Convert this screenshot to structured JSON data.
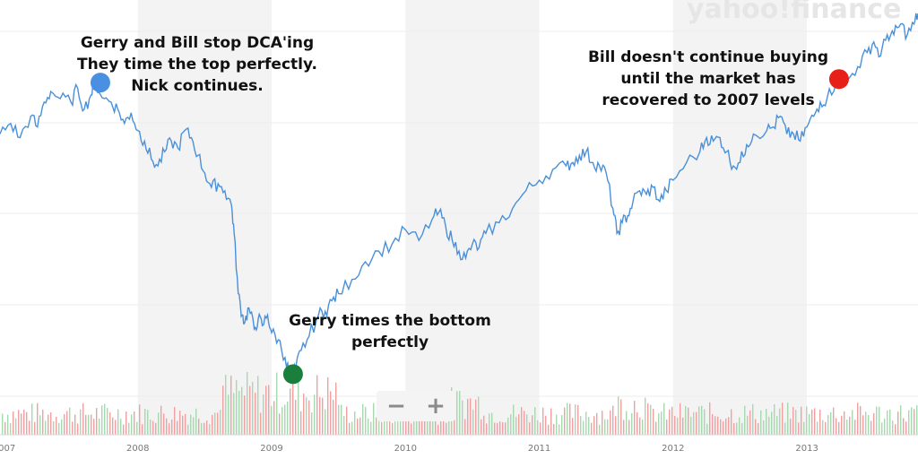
{
  "chart_data": {
    "type": "line",
    "title": "",
    "xlabel": "",
    "ylabel": "",
    "xlim": [
      2006.97,
      2013.83
    ],
    "ylim": [
      600,
      1750
    ],
    "x_ticks": [
      "2007",
      "2008",
      "2009",
      "2010",
      "2011",
      "2012",
      "2013"
    ],
    "x_tick_values": [
      2007,
      2008,
      2009,
      2010,
      2011,
      2012,
      2013
    ],
    "grid": "alternating vertical year bands",
    "series": [
      {
        "color": "#4a90d9",
        "x": [
          2006.97,
          2007.05,
          2007.12,
          2007.2,
          2007.25,
          2007.3,
          2007.35,
          2007.42,
          2007.5,
          2007.55,
          2007.6,
          2007.65,
          2007.68,
          2007.75,
          2007.8,
          2007.85,
          2007.9,
          2007.95,
          2008.0,
          2008.05,
          2008.1,
          2008.15,
          2008.2,
          2008.25,
          2008.3,
          2008.35,
          2008.4,
          2008.45,
          2008.5,
          2008.55,
          2008.6,
          2008.65,
          2008.7,
          2008.72,
          2008.75,
          2008.78,
          2008.8,
          2008.83,
          2008.87,
          2008.9,
          2008.93,
          2008.97,
          2009.0,
          2009.05,
          2009.1,
          2009.14,
          2009.18,
          2009.22,
          2009.28,
          2009.35,
          2009.4,
          2009.45,
          2009.5,
          2009.6,
          2009.7,
          2009.8,
          2009.9,
          2010.0,
          2010.1,
          2010.2,
          2010.25,
          2010.3,
          2010.35,
          2010.4,
          2010.45,
          2010.5,
          2010.55,
          2010.6,
          2010.7,
          2010.8,
          2010.9,
          2011.0,
          2011.1,
          2011.2,
          2011.25,
          2011.3,
          2011.35,
          2011.4,
          2011.45,
          2011.5,
          2011.55,
          2011.58,
          2011.62,
          2011.66,
          2011.7,
          2011.75,
          2011.8,
          2011.85,
          2011.9,
          2011.95,
          2012.0,
          2012.1,
          2012.2,
          2012.25,
          2012.3,
          2012.35,
          2012.4,
          2012.45,
          2012.5,
          2012.55,
          2012.6,
          2012.7,
          2012.75,
          2012.8,
          2012.85,
          2012.9,
          2012.95,
          2013.0,
          2013.05,
          2013.1,
          2013.15,
          2013.22,
          2013.3,
          2013.38,
          2013.45,
          2013.5,
          2013.55,
          2013.6,
          2013.65,
          2013.7,
          2013.75,
          2013.8,
          2013.83
        ],
        "y": [
          1410,
          1440,
          1400,
          1460,
          1430,
          1500,
          1530,
          1510,
          1500,
          1540,
          1480,
          1520,
          1555,
          1510,
          1500,
          1480,
          1440,
          1470,
          1420,
          1390,
          1340,
          1320,
          1360,
          1390,
          1370,
          1420,
          1400,
          1350,
          1300,
          1260,
          1270,
          1250,
          1210,
          1130,
          960,
          900,
          880,
          920,
          860,
          890,
          870,
          900,
          850,
          830,
          780,
          720,
          750,
          800,
          840,
          900,
          910,
          940,
          960,
          1000,
          1050,
          1080,
          1100,
          1140,
          1110,
          1170,
          1190,
          1150,
          1110,
          1080,
          1060,
          1100,
          1090,
          1130,
          1160,
          1200,
          1250,
          1280,
          1310,
          1320,
          1330,
          1350,
          1360,
          1330,
          1320,
          1300,
          1200,
          1130,
          1160,
          1180,
          1220,
          1250,
          1240,
          1260,
          1220,
          1250,
          1280,
          1330,
          1360,
          1400,
          1390,
          1400,
          1360,
          1320,
          1330,
          1380,
          1410,
          1420,
          1430,
          1460,
          1410,
          1410,
          1390,
          1430,
          1460,
          1500,
          1510,
          1560,
          1560,
          1600,
          1640,
          1670,
          1630,
          1690,
          1690,
          1720,
          1690,
          1720,
          1750
        ]
      }
    ],
    "volume": {
      "colors": {
        "up": "#a8d8b0",
        "down": "#f0a0a0"
      },
      "description": "daily volume bars along bottom"
    },
    "markers": [
      {
        "name": "blue-top-marker",
        "x": 2007.72,
        "y": 1555,
        "color": "#4a90e2"
      },
      {
        "name": "green-bottom-marker",
        "x": 2009.16,
        "y": 733,
        "color": "#1a7f3c"
      },
      {
        "name": "red-recovery-marker",
        "x": 2013.24,
        "y": 1565,
        "color": "#e8201a"
      }
    ],
    "annotations": [
      {
        "lines": [
          "Gerry and Bill stop DCA'ing",
          "They time the top perfectly.",
          "Nick continues."
        ]
      },
      {
        "lines": [
          "Gerry times the bottom",
          "perfectly"
        ]
      },
      {
        "lines": [
          "Bill doesn't continue buying",
          "until the market has",
          "recovered to 2007 levels"
        ]
      }
    ]
  },
  "watermark": "yahoo!finance",
  "zoom": {
    "minus": "−",
    "plus": "+"
  }
}
